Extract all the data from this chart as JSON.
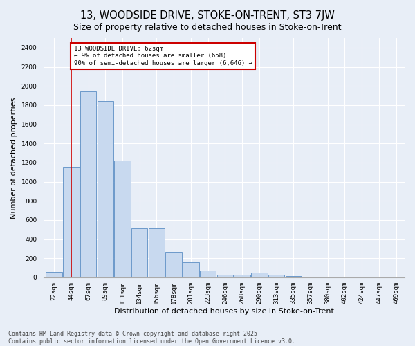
{
  "title": "13, WOODSIDE DRIVE, STOKE-ON-TRENT, ST3 7JW",
  "subtitle": "Size of property relative to detached houses in Stoke-on-Trent",
  "xlabel": "Distribution of detached houses by size in Stoke-on-Trent",
  "ylabel": "Number of detached properties",
  "categories": [
    "22sqm",
    "44sqm",
    "67sqm",
    "89sqm",
    "111sqm",
    "134sqm",
    "156sqm",
    "178sqm",
    "201sqm",
    "223sqm",
    "246sqm",
    "268sqm",
    "290sqm",
    "313sqm",
    "335sqm",
    "357sqm",
    "380sqm",
    "402sqm",
    "424sqm",
    "447sqm",
    "469sqm"
  ],
  "values": [
    60,
    1150,
    1940,
    1840,
    1220,
    510,
    510,
    270,
    160,
    70,
    30,
    30,
    50,
    25,
    15,
    10,
    5,
    5,
    3,
    2,
    2
  ],
  "bar_color": "#c8d9ef",
  "bar_edge_color": "#5b8ec4",
  "vline_x": 1.0,
  "vline_color": "#cc0000",
  "annotation_text": "13 WOODSIDE DRIVE: 62sqm\n← 9% of detached houses are smaller (658)\n90% of semi-detached houses are larger (6,646) →",
  "annotation_box_color": "#ffffff",
  "annotation_box_edge": "#cc0000",
  "ylim": [
    0,
    2500
  ],
  "yticks": [
    0,
    200,
    400,
    600,
    800,
    1000,
    1200,
    1400,
    1600,
    1800,
    2000,
    2200,
    2400
  ],
  "bg_color": "#e8eef7",
  "footer1": "Contains HM Land Registry data © Crown copyright and database right 2025.",
  "footer2": "Contains public sector information licensed under the Open Government Licence v3.0.",
  "title_fontsize": 10.5,
  "subtitle_fontsize": 9,
  "axis_label_fontsize": 8,
  "tick_fontsize": 6.5,
  "annotation_fontsize": 6.5,
  "footer_fontsize": 6
}
